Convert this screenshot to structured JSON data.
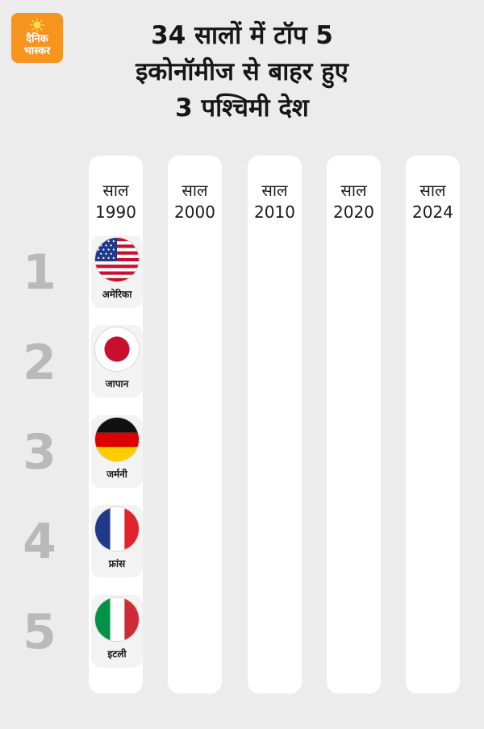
{
  "logo": {
    "line1": "दैनिक",
    "line2": "भास्कर"
  },
  "title": {
    "line1": "34 सालों में टॉप 5",
    "line2": "इकोनॉमीज से बाहर हुए",
    "line3": "3 पश्चिमी देश"
  },
  "columns": [
    {
      "label": "साल",
      "year": "1990"
    },
    {
      "label": "साल",
      "year": "2000"
    },
    {
      "label": "साल",
      "year": "2010"
    },
    {
      "label": "साल",
      "year": "2020"
    },
    {
      "label": "साल",
      "year": "2024"
    }
  ],
  "ranks": [
    "1",
    "2",
    "3",
    "4",
    "5"
  ],
  "countries_1990": [
    {
      "name": "अमेरिका",
      "flag": "usa-flag-icon"
    },
    {
      "name": "जापान",
      "flag": "japan-flag-icon"
    },
    {
      "name": "जर्मनी",
      "flag": "germany-flag-icon"
    },
    {
      "name": "फ्रांस",
      "flag": "france-flag-icon"
    },
    {
      "name": "इटली",
      "flag": "italy-flag-icon"
    }
  ],
  "colors": {
    "background": "#ececec",
    "column": "#ffffff",
    "rank_number": "#b9b9b9",
    "logo": "#f7941d"
  }
}
